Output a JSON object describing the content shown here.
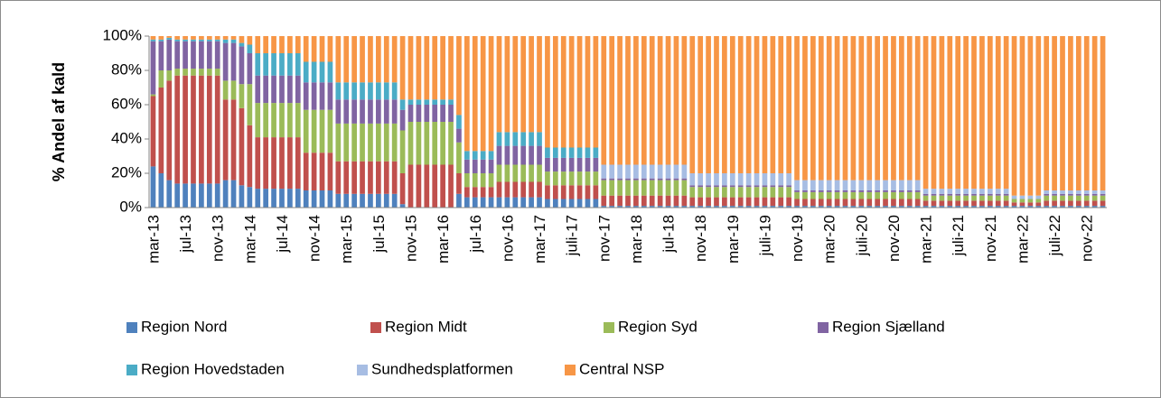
{
  "chart_data": {
    "type": "stacked_bar",
    "y_label": "% Andel af kald",
    "ylim": [
      0,
      100
    ],
    "yticks": [
      {
        "value": 0,
        "label": "0%"
      },
      {
        "value": 20,
        "label": "20%"
      },
      {
        "value": 40,
        "label": "40%"
      },
      {
        "value": 60,
        "label": "60%"
      },
      {
        "value": 80,
        "label": "80%"
      },
      {
        "value": 100,
        "label": "100%"
      }
    ],
    "grid": false,
    "legend": "bottom",
    "categories": [
      "mar-13",
      null,
      null,
      null,
      "jul-13",
      null,
      null,
      null,
      "nov-13",
      null,
      null,
      null,
      "mar-14",
      null,
      null,
      null,
      "jul-14",
      null,
      null,
      null,
      "nov-14",
      null,
      null,
      null,
      "mar-15",
      null,
      null,
      null,
      "jul-15",
      null,
      null,
      null,
      "nov-15",
      null,
      null,
      null,
      "mar-16",
      null,
      null,
      null,
      "jul-16",
      null,
      null,
      null,
      "nov-16",
      null,
      null,
      null,
      "mar-17",
      null,
      null,
      null,
      "juli-17",
      null,
      null,
      null,
      "nov-17",
      null,
      null,
      null,
      "mar-18",
      null,
      null,
      null,
      "jul-18",
      null,
      null,
      null,
      "nov-18",
      null,
      null,
      null,
      "mar-19",
      null,
      null,
      null,
      "juli-19",
      null,
      null,
      null,
      "nov-19",
      null,
      null,
      null,
      "mar-20",
      null,
      null,
      null,
      "juli-20",
      null,
      null,
      null,
      "nov-20",
      null,
      null,
      null,
      "mar-21",
      null,
      null,
      null,
      "juli-21",
      null,
      null,
      null,
      "nov-21",
      null,
      null,
      null,
      "mar-22",
      null,
      null,
      null,
      "juli-22",
      null,
      null,
      null,
      "nov-22",
      null,
      null
    ],
    "series": [
      {
        "name": "Region Nord",
        "color": "#4f81bd",
        "values": [
          24,
          20,
          16,
          14,
          14,
          14,
          14,
          14,
          14,
          16,
          16,
          13,
          12,
          11,
          11,
          11,
          11,
          11,
          11,
          10,
          10,
          10,
          10,
          8,
          8,
          8,
          8,
          8,
          8,
          8,
          8,
          2,
          0,
          0,
          0,
          0,
          0,
          0,
          8,
          6,
          6,
          6,
          6,
          6,
          6,
          6,
          6,
          6,
          6,
          5,
          5,
          5,
          5,
          5,
          5,
          5,
          1,
          1,
          1,
          1,
          1,
          1,
          1,
          1,
          1,
          1,
          1,
          1,
          1,
          1,
          1,
          1,
          1,
          1,
          1,
          1,
          1,
          1,
          1,
          1,
          1,
          1,
          1,
          1,
          1,
          1,
          1,
          1,
          1,
          1,
          1,
          1,
          1,
          1,
          1,
          1,
          1,
          1,
          1,
          1,
          1,
          1,
          1,
          1,
          1,
          1,
          1,
          1,
          1,
          1,
          1,
          1,
          1,
          1,
          1,
          1,
          1,
          1,
          1
        ]
      },
      {
        "name": "Region Midt",
        "color": "#c0504d",
        "values": [
          41,
          50,
          58,
          63,
          63,
          63,
          63,
          63,
          63,
          47,
          47,
          45,
          36,
          30,
          30,
          30,
          30,
          30,
          30,
          22,
          22,
          22,
          22,
          19,
          19,
          19,
          19,
          19,
          19,
          19,
          19,
          18,
          25,
          25,
          25,
          25,
          25,
          25,
          12,
          6,
          6,
          6,
          6,
          9,
          9,
          9,
          9,
          9,
          9,
          8,
          8,
          8,
          8,
          8,
          8,
          8,
          6,
          6,
          6,
          6,
          6,
          6,
          6,
          6,
          6,
          6,
          6,
          5,
          5,
          5,
          5,
          5,
          5,
          5,
          5,
          5,
          5,
          5,
          5,
          5,
          4,
          4,
          4,
          4,
          4,
          4,
          4,
          4,
          4,
          4,
          4,
          4,
          4,
          4,
          4,
          4,
          3,
          3,
          3,
          3,
          3,
          3,
          3,
          3,
          3,
          3,
          3,
          2,
          2,
          2,
          2,
          3,
          3,
          3,
          3,
          3,
          3,
          3,
          3
        ]
      },
      {
        "name": "Region Syd",
        "color": "#9bbb59",
        "values": [
          1,
          10,
          6,
          4,
          4,
          4,
          4,
          4,
          4,
          11,
          11,
          14,
          24,
          20,
          20,
          20,
          20,
          20,
          20,
          25,
          25,
          25,
          25,
          22,
          22,
          22,
          22,
          22,
          22,
          22,
          22,
          25,
          25,
          25,
          25,
          25,
          25,
          25,
          18,
          8,
          8,
          8,
          8,
          10,
          10,
          10,
          10,
          10,
          10,
          8,
          8,
          8,
          8,
          8,
          8,
          8,
          9,
          9,
          9,
          9,
          9,
          9,
          9,
          9,
          9,
          9,
          9,
          6,
          6,
          6,
          6,
          6,
          6,
          6,
          6,
          6,
          6,
          6,
          6,
          6,
          4,
          4,
          4,
          4,
          4,
          4,
          4,
          4,
          4,
          4,
          4,
          4,
          4,
          4,
          4,
          4,
          3,
          3,
          3,
          3,
          3,
          3,
          3,
          3,
          3,
          3,
          3,
          2,
          2,
          2,
          2,
          3,
          3,
          3,
          3,
          3,
          3,
          3,
          3
        ]
      },
      {
        "name": "Region Sjælland",
        "color": "#8064a2",
        "values": [
          31,
          17,
          18,
          16,
          16,
          16,
          16,
          16,
          16,
          22,
          22,
          22,
          18,
          16,
          16,
          16,
          16,
          16,
          16,
          16,
          16,
          16,
          16,
          14,
          14,
          14,
          14,
          14,
          14,
          14,
          14,
          12,
          10,
          10,
          10,
          10,
          10,
          10,
          8,
          8,
          8,
          8,
          8,
          11,
          11,
          11,
          11,
          11,
          11,
          8,
          8,
          8,
          8,
          8,
          8,
          8,
          1,
          1,
          1,
          1,
          1,
          1,
          1,
          1,
          1,
          1,
          1,
          1,
          1,
          1,
          1,
          1,
          1,
          1,
          1,
          1,
          1,
          1,
          1,
          1,
          1,
          1,
          1,
          1,
          1,
          1,
          1,
          1,
          1,
          1,
          1,
          1,
          1,
          1,
          1,
          1,
          1,
          1,
          1,
          1,
          1,
          1,
          1,
          1,
          1,
          1,
          1,
          0,
          0,
          0,
          0,
          1,
          1,
          1,
          1,
          1,
          1,
          1,
          1
        ]
      },
      {
        "name": "Region Hovedstaden",
        "color": "#4bacc6",
        "values": [
          1,
          1,
          1,
          1,
          1,
          1,
          1,
          1,
          1,
          2,
          2,
          2,
          5,
          13,
          13,
          13,
          13,
          13,
          13,
          12,
          12,
          12,
          12,
          10,
          10,
          10,
          10,
          10,
          10,
          10,
          10,
          6,
          3,
          3,
          3,
          3,
          3,
          3,
          8,
          5,
          5,
          5,
          5,
          8,
          8,
          8,
          8,
          8,
          8,
          6,
          6,
          6,
          6,
          6,
          6,
          6,
          0,
          0,
          0,
          0,
          0,
          0,
          0,
          0,
          0,
          0,
          0,
          0,
          0,
          0,
          0,
          0,
          0,
          0,
          0,
          0,
          0,
          0,
          0,
          0,
          0,
          0,
          0,
          0,
          0,
          0,
          0,
          0,
          0,
          0,
          0,
          0,
          0,
          0,
          0,
          0,
          0,
          0,
          0,
          0,
          0,
          0,
          0,
          0,
          0,
          0,
          0,
          0,
          0,
          0,
          0,
          0,
          0,
          0,
          0,
          0,
          0,
          0,
          0
        ]
      },
      {
        "name": "Sundhedsplatformen",
        "color": "#a7bde3",
        "values": [
          0,
          0,
          0,
          0,
          0,
          0,
          0,
          0,
          0,
          0,
          0,
          0,
          0,
          0,
          0,
          0,
          0,
          0,
          0,
          0,
          0,
          0,
          0,
          0,
          0,
          0,
          0,
          0,
          0,
          0,
          0,
          0,
          0,
          0,
          0,
          0,
          0,
          0,
          0,
          0,
          0,
          0,
          0,
          0,
          0,
          0,
          0,
          0,
          0,
          0,
          0,
          0,
          0,
          0,
          0,
          0,
          8,
          8,
          8,
          8,
          8,
          8,
          8,
          8,
          8,
          8,
          8,
          7,
          7,
          7,
          7,
          7,
          7,
          7,
          7,
          7,
          7,
          7,
          7,
          7,
          6,
          6,
          6,
          6,
          6,
          6,
          6,
          6,
          6,
          6,
          6,
          6,
          6,
          6,
          6,
          6,
          3,
          3,
          3,
          3,
          3,
          3,
          3,
          3,
          3,
          3,
          3,
          2,
          2,
          2,
          2,
          2,
          2,
          2,
          2,
          2,
          2,
          2,
          2
        ]
      },
      {
        "name": "Central NSP",
        "color": "#f79646",
        "values": [
          2,
          2,
          1,
          2,
          2,
          2,
          2,
          2,
          2,
          2,
          2,
          4,
          5,
          10,
          10,
          10,
          10,
          10,
          10,
          15,
          15,
          15,
          15,
          27,
          27,
          27,
          27,
          27,
          27,
          27,
          27,
          37,
          37,
          37,
          37,
          37,
          37,
          37,
          46,
          67,
          67,
          67,
          67,
          56,
          56,
          56,
          56,
          56,
          56,
          65,
          65,
          65,
          65,
          65,
          65,
          65,
          75,
          75,
          75,
          75,
          75,
          75,
          75,
          75,
          75,
          75,
          75,
          80,
          80,
          80,
          80,
          80,
          80,
          80,
          80,
          80,
          80,
          80,
          80,
          80,
          84,
          84,
          84,
          84,
          84,
          84,
          84,
          84,
          84,
          84,
          84,
          84,
          84,
          84,
          84,
          84,
          89,
          89,
          89,
          89,
          89,
          89,
          89,
          89,
          89,
          89,
          89,
          93,
          93,
          93,
          93,
          90,
          90,
          90,
          90,
          90,
          90,
          90,
          90
        ]
      }
    ]
  }
}
